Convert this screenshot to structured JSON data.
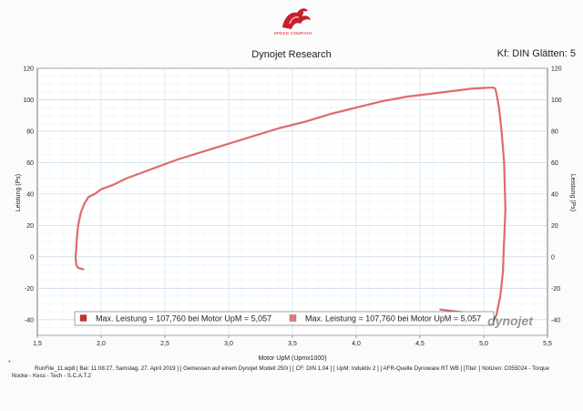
{
  "header": {
    "brand": "SPEED COMPANY",
    "title": "Dynojet Research",
    "smoothing": "Kf: DIN Glätten: 5"
  },
  "chart_data": {
    "type": "line",
    "xlabel": "Motor UpM (Upmx1000)",
    "ylabel_left": "Leistung (Ps)",
    "ylabel_right": "Leistung (Ps)",
    "xlim": [
      1.5,
      5.5
    ],
    "ylim": [
      -50,
      120
    ],
    "xticks": [
      "1,5",
      "2,0",
      "2,5",
      "3,0",
      "3,5",
      "4,0",
      "4,5",
      "5,0",
      "5,5"
    ],
    "yticks": [
      "120",
      "100",
      "80",
      "60",
      "40",
      "20",
      "0",
      "-20",
      "-40"
    ],
    "grid": true,
    "line_color": "#e06a6a",
    "series": [
      {
        "x": [
          1.86,
          1.82,
          1.805,
          1.8,
          1.805,
          1.81,
          1.82,
          1.84,
          1.87,
          1.9,
          1.95,
          2.0,
          2.1,
          2.2,
          2.3,
          2.4,
          2.5,
          2.6,
          2.8,
          3.0,
          3.2,
          3.4,
          3.6,
          3.8,
          4.0,
          4.2,
          4.4,
          4.6,
          4.8,
          4.9,
          5.0,
          5.05,
          5.08,
          5.09,
          5.1,
          5.12,
          5.14,
          5.16,
          5.17,
          5.16,
          5.15,
          5.13,
          5.1,
          5.08,
          5.06,
          5.05,
          5.0,
          4.9,
          4.8,
          4.7,
          4.66
        ],
        "y": [
          -8,
          -7,
          -5,
          0,
          5,
          12,
          20,
          28,
          34,
          38,
          40,
          43,
          46,
          50,
          53,
          56,
          59,
          62,
          67,
          72,
          77,
          82,
          86,
          91,
          95,
          99,
          102,
          104,
          106,
          107,
          107.5,
          107.7,
          107.7,
          107,
          104,
          95,
          80,
          60,
          30,
          10,
          -10,
          -25,
          -37,
          -40,
          -41,
          -40,
          -38,
          -36,
          -35,
          -34,
          -33.5
        ]
      }
    ],
    "legend": [
      "Max. Leistung = 107,760 bei Motor UpM = 5,057",
      "Max. Leistung = 107,760 bei Motor UpM = 5,057"
    ],
    "legend_colors": [
      "#d42a2a",
      "#e07a7a"
    ],
    "legend_placement": "bottom"
  },
  "watermark": "dynojet",
  "footer": {
    "mark": "*",
    "line1": "RunFile_11.wp8 [ Bei: 11:08:27, Samstag, 27. April 2019 ] [ Gemessen auf einem Dynojet Modell 250i ] [ CF: DIN 1,04 ] [ UpM: Induktiv 2 ] [ AFR-Quelle Dynoware RT WB ] [Titel: ] Notizen: C055024 - Torque",
    "line2": "Nocke - Kess - Tech - S.C.A.T.2"
  }
}
